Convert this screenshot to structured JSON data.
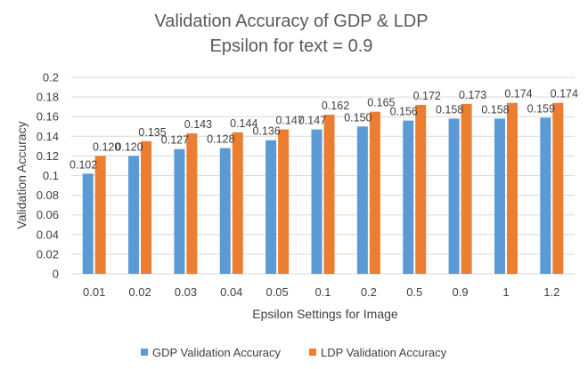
{
  "chart_data": {
    "type": "bar",
    "title": "Validation Accuracy of GDP & LDP",
    "subtitle": "Epsilon for text = 0.9",
    "xlabel": "Epsilon Settings for Image",
    "ylabel": "Validation Accuracy",
    "ylim": [
      0,
      0.2
    ],
    "yticks": [
      "0",
      "0.02",
      "0.04",
      "0.06",
      "0.08",
      "0.1",
      "0.12",
      "0.14",
      "0.16",
      "0.18",
      "0.2"
    ],
    "grid": true,
    "legend_position": "bottom",
    "categories": [
      "0.01",
      "0.02",
      "0.03",
      "0.04",
      "0.05",
      "0.1",
      "0.2",
      "0.5",
      "0.9",
      "1",
      "1.2"
    ],
    "series": [
      {
        "name": "GDP Validation Accuracy",
        "color": "#5B9BD5",
        "values": [
          0.102,
          0.12,
          0.127,
          0.128,
          0.136,
          0.147,
          0.15,
          0.156,
          0.158,
          0.158,
          0.159
        ],
        "labels": [
          "0.102",
          "0.120",
          "0.127",
          "0.128",
          "0.136",
          "0.147",
          "0.150",
          "0.156",
          "0.158",
          "0.158",
          "0.159"
        ]
      },
      {
        "name": "LDP Validation Accuracy",
        "color": "#ED7D31",
        "values": [
          0.12,
          0.135,
          0.143,
          0.144,
          0.147,
          0.162,
          0.165,
          0.172,
          0.173,
          0.174,
          0.174
        ],
        "labels": [
          "0.120",
          "0.135",
          "0.143",
          "0.144",
          "0.147",
          "0.162",
          "0.165",
          "0.172",
          "0.173",
          "0.174",
          "0.174"
        ]
      }
    ]
  }
}
